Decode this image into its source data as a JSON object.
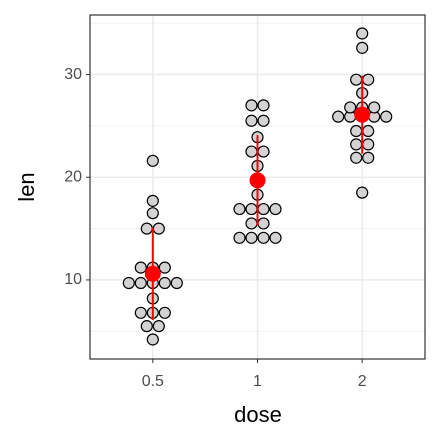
{
  "chart_data": {
    "type": "dotplot",
    "x_label": "dose",
    "y_label": "len",
    "categories": [
      "0.5",
      "1",
      "2"
    ],
    "groups": [
      {
        "dots": [
          4.2,
          5.5,
          5.5,
          6.8,
          6.8,
          6.8,
          8.2,
          9.7,
          9.7,
          9.7,
          9.7,
          9.7,
          11.2,
          11.2,
          11.2,
          15,
          15,
          16.5,
          17.7,
          21.6
        ],
        "mean": 10.6,
        "sd": 4.5
      },
      {
        "dots": [
          14.1,
          14.1,
          14.1,
          14.1,
          15.5,
          15.5,
          16.9,
          16.9,
          16.9,
          16.9,
          18.3,
          19.7,
          21.1,
          22.5,
          22.5,
          23.9,
          25.5,
          25.5,
          27,
          27
        ],
        "mean": 19.7,
        "sd": 4.4
      },
      {
        "dots": [
          18.5,
          21.9,
          21.9,
          23.2,
          23.2,
          24.5,
          24.5,
          25.9,
          25.9,
          25.9,
          25.9,
          25.9,
          26.8,
          26.8,
          26.8,
          28.2,
          29.5,
          29.5,
          32.6,
          34
        ],
        "mean": 26.1,
        "sd": 3.8
      }
    ],
    "ylim": [
      2.3,
      35.8
    ],
    "yticks": [
      10,
      20,
      30
    ],
    "y_minor_ticks": [
      5,
      15,
      25,
      35
    ],
    "grid": true,
    "dot_color": "#d3d3d3",
    "summary_color": "#ff0000"
  }
}
